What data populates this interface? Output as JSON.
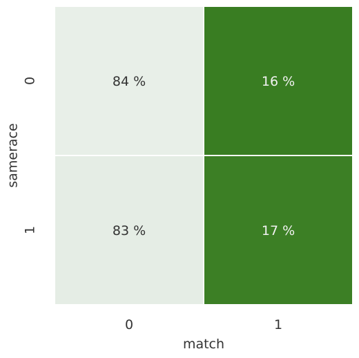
{
  "chart_data": {
    "type": "heatmap",
    "title": "",
    "xlabel": "match",
    "ylabel": "samerace",
    "x_categories": [
      "0",
      "1"
    ],
    "y_categories": [
      "0",
      "1"
    ],
    "values": [
      [
        84,
        16
      ],
      [
        83,
        17
      ]
    ],
    "cell_labels": [
      [
        "84 %",
        "16 %"
      ],
      [
        "83 %",
        "17 %"
      ]
    ],
    "colors": {
      "low": "#e8efe8",
      "high": "#397d22",
      "grid_line": "#ffffff",
      "text_on_low": "#333333",
      "text_on_high": "#f2f2f2"
    },
    "grid": false,
    "legend": "none"
  }
}
